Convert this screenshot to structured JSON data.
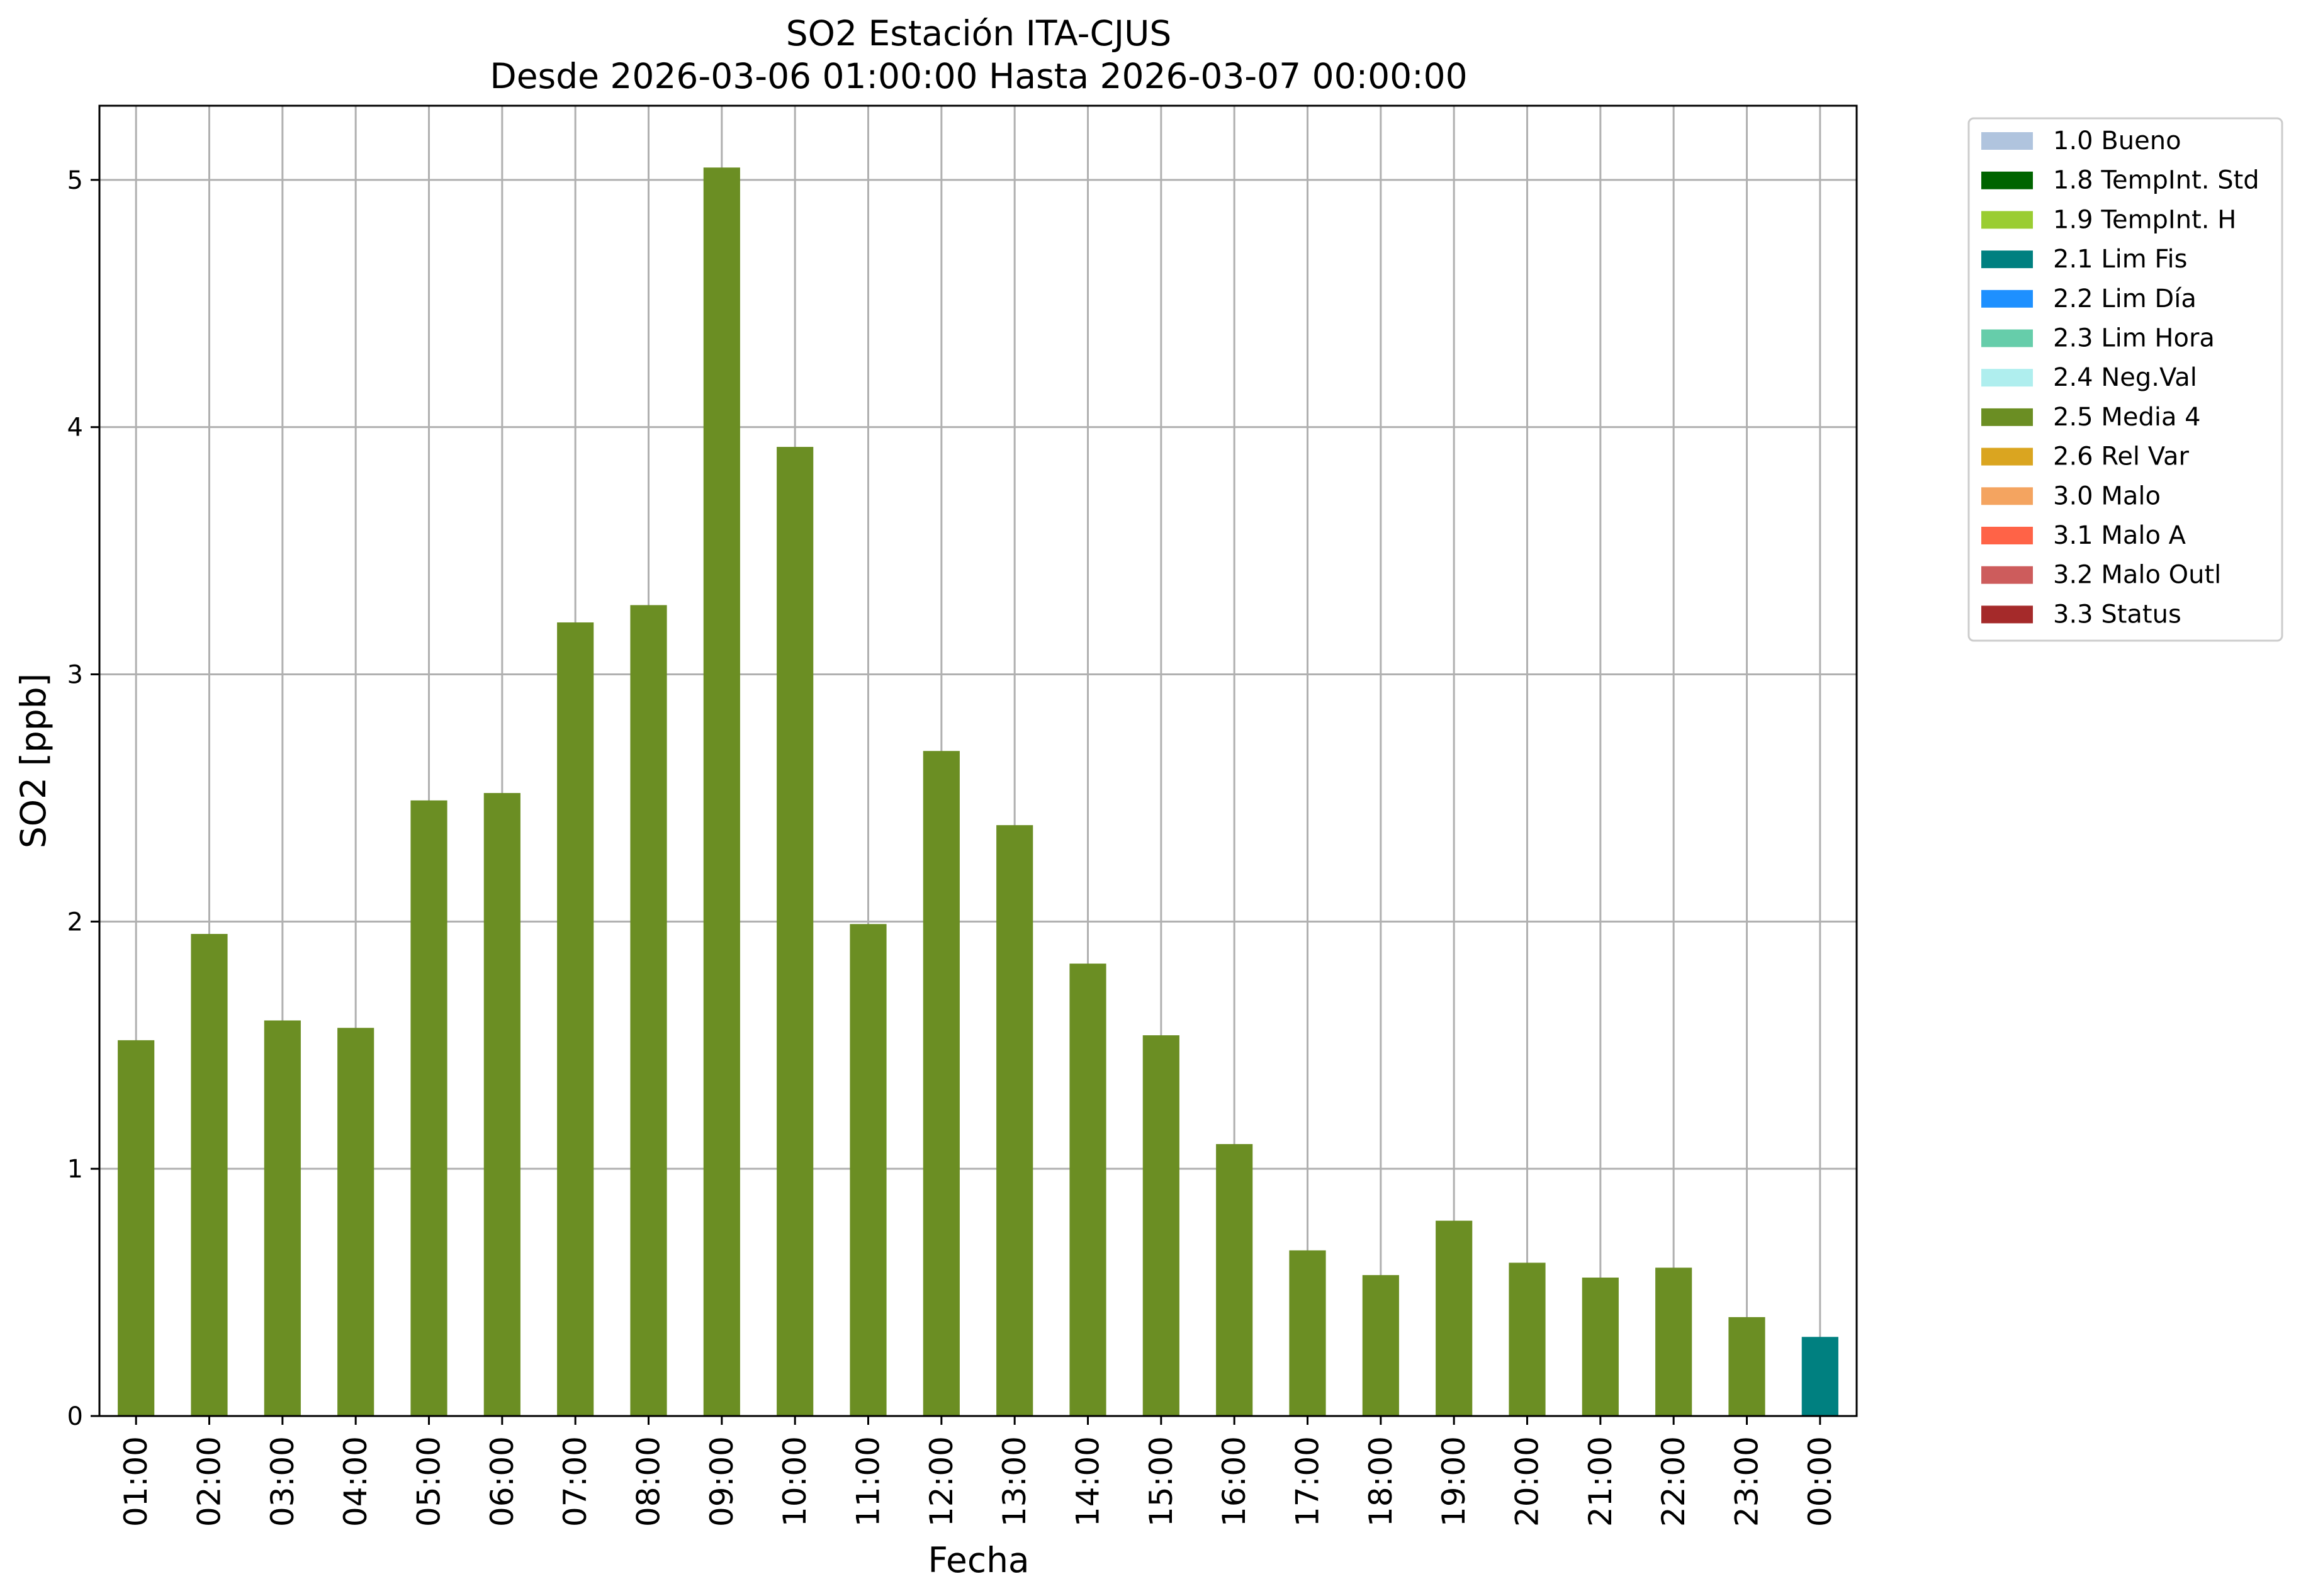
{
  "chart_data": {
    "type": "bar",
    "title": "SO2 Estación ITA-CJUS",
    "subtitle": "Desde 2026-03-06 01:00:00 Hasta 2026-03-07 00:00:00",
    "xlabel": "Fecha",
    "ylabel": "SO2 [ppb]",
    "ylim": [
      0,
      5.3
    ],
    "yticks": [
      0,
      1,
      2,
      3,
      4,
      5
    ],
    "grid": true,
    "legend_position": "outside-top-right",
    "categories": [
      "01:00",
      "02:00",
      "03:00",
      "04:00",
      "05:00",
      "06:00",
      "07:00",
      "08:00",
      "09:00",
      "10:00",
      "11:00",
      "12:00",
      "13:00",
      "14:00",
      "15:00",
      "16:00",
      "17:00",
      "18:00",
      "19:00",
      "20:00",
      "21:00",
      "22:00",
      "23:00",
      "00:00"
    ],
    "values": [
      1.52,
      1.95,
      1.6,
      1.57,
      2.49,
      2.52,
      3.21,
      3.28,
      5.05,
      3.92,
      1.99,
      2.69,
      2.39,
      1.83,
      1.54,
      1.1,
      0.67,
      0.57,
      0.79,
      0.62,
      0.56,
      0.6,
      0.4,
      0.32
    ],
    "flags": [
      "2.5 Media 4",
      "2.5 Media 4",
      "2.5 Media 4",
      "2.5 Media 4",
      "2.5 Media 4",
      "2.5 Media 4",
      "2.5 Media 4",
      "2.5 Media 4",
      "2.5 Media 4",
      "2.5 Media 4",
      "2.5 Media 4",
      "2.5 Media 4",
      "2.5 Media 4",
      "2.5 Media 4",
      "2.5 Media 4",
      "2.5 Media 4",
      "2.5 Media 4",
      "2.5 Media 4",
      "2.5 Media 4",
      "2.5 Media 4",
      "2.5 Media 4",
      "2.5 Media 4",
      "2.5 Media 4",
      "2.1 Lim Fis"
    ],
    "legend": [
      {
        "label": "1.0 Bueno",
        "color": "#b0c4de"
      },
      {
        "label": "1.8 TempInt. Std",
        "color": "#006400"
      },
      {
        "label": "1.9 TempInt. H",
        "color": "#9acd32"
      },
      {
        "label": "2.1 Lim Fis",
        "color": "#008080"
      },
      {
        "label": "2.2 Lim Día",
        "color": "#1e90ff"
      },
      {
        "label": "2.3 Lim Hora",
        "color": "#66cdaa"
      },
      {
        "label": "2.4 Neg.Val",
        "color": "#afeeee"
      },
      {
        "label": "2.5 Media 4",
        "color": "#6b8e23"
      },
      {
        "label": "2.6 Rel Var",
        "color": "#daa520"
      },
      {
        "label": "3.0 Malo",
        "color": "#f4a460"
      },
      {
        "label": "3.1 Malo A",
        "color": "#ff6347"
      },
      {
        "label": "3.2 Malo Outl",
        "color": "#cd5c5c"
      },
      {
        "label": "3.3 Status",
        "color": "#a52a2a"
      }
    ]
  }
}
